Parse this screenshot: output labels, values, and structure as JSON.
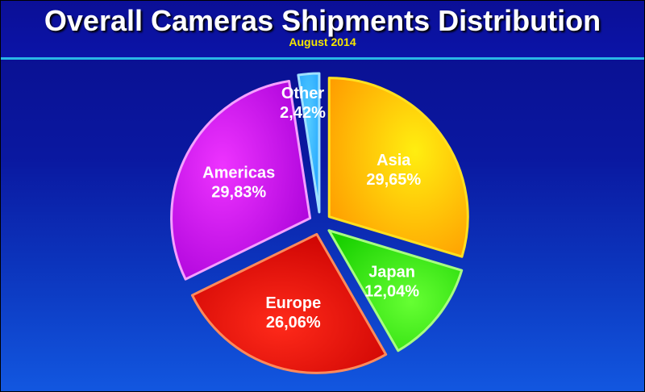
{
  "header": {
    "title": "Overall Cameras Shipments Distribution",
    "subtitle": "August 2014"
  },
  "chart_data": {
    "type": "pie",
    "title": "Overall Cameras Shipments Distribution",
    "subtitle": "August 2014",
    "slices": [
      {
        "name": "Asia",
        "value": 29.65,
        "label": "29,65%",
        "color": "#ff9a00",
        "highlight": "#ffee10",
        "stroke": "#ffe020"
      },
      {
        "name": "Japan",
        "value": 12.04,
        "label": "12,04%",
        "color": "#18d000",
        "highlight": "#66ff33",
        "stroke": "#a8ff80"
      },
      {
        "name": "Europe",
        "value": 26.06,
        "label": "26,06%",
        "color": "#c80000",
        "highlight": "#ff2a1a",
        "stroke": "#ff8a5a"
      },
      {
        "name": "Americas",
        "value": 29.83,
        "label": "29,83%",
        "color": "#a800d8",
        "highlight": "#ee33ff",
        "stroke": "#f5a0ff"
      },
      {
        "name": "Other",
        "value": 2.42,
        "label": "2,42%",
        "color": "#1ea0ff",
        "highlight": "#55ccff",
        "stroke": "#a0e0ff"
      }
    ],
    "start_angle": "12 o'clock",
    "direction": "clockwise",
    "exploded": true,
    "legend": "none"
  }
}
